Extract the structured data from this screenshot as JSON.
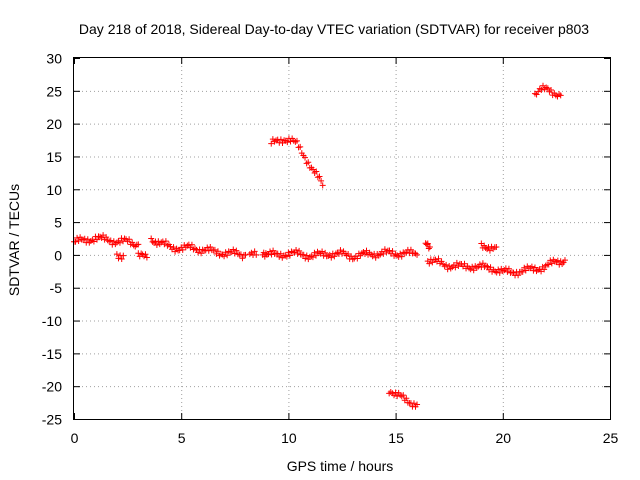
{
  "chart_data": {
    "type": "scatter",
    "title": "Day 218 of 2018, Sidereal Day-to-day VTEC variation (SDTVAR) for receiver p803",
    "xlabel": "GPS time / hours",
    "ylabel": "SDTVAR / TECUs",
    "xlim": [
      0,
      25
    ],
    "ylim": [
      -25,
      30
    ],
    "x_ticks": [
      0,
      5,
      10,
      15,
      20,
      25
    ],
    "y_ticks": [
      -25,
      -20,
      -15,
      -10,
      -5,
      0,
      5,
      10,
      15,
      20,
      25,
      30
    ],
    "grid": true,
    "marker": "plus",
    "color": "#ff0000",
    "series": [
      {
        "name": "SDTVAR",
        "segments": [
          [
            [
              0.0,
              2.0
            ],
            [
              0.5,
              2.2
            ],
            [
              1.0,
              2.6
            ],
            [
              1.5,
              2.3
            ],
            [
              2.0,
              2.1
            ],
            [
              2.5,
              2.0
            ],
            [
              3.0,
              1.6
            ]
          ],
          [
            [
              2.0,
              0.0
            ],
            [
              2.3,
              -0.1
            ]
          ],
          [
            [
              3.0,
              -0.2
            ],
            [
              3.4,
              -0.4
            ]
          ],
          [
            [
              3.6,
              2.5
            ],
            [
              4.0,
              1.8
            ],
            [
              4.5,
              1.2
            ],
            [
              5.0,
              1.0
            ],
            [
              5.5,
              1.1
            ],
            [
              6.0,
              0.8
            ],
            [
              6.5,
              0.5
            ],
            [
              7.0,
              0.3
            ],
            [
              7.5,
              0.2
            ],
            [
              8.0,
              0.0
            ]
          ],
          [
            [
              8.2,
              -0.2
            ],
            [
              8.5,
              0.0
            ]
          ],
          [
            [
              8.8,
              0.5
            ],
            [
              9.0,
              0.2
            ],
            [
              9.5,
              -0.1
            ],
            [
              10.0,
              0.3
            ],
            [
              10.5,
              0.1
            ],
            [
              11.0,
              -0.1
            ],
            [
              11.5,
              0.0
            ],
            [
              12.0,
              0.2
            ],
            [
              12.5,
              0.1
            ],
            [
              13.0,
              -0.2
            ],
            [
              13.5,
              0.0
            ],
            [
              14.0,
              0.2
            ],
            [
              14.5,
              0.3
            ],
            [
              15.0,
              0.2
            ],
            [
              15.5,
              0.3
            ],
            [
              16.0,
              0.0
            ]
          ],
          [
            [
              9.2,
              16.9
            ],
            [
              9.5,
              17.4
            ],
            [
              9.8,
              17.7
            ],
            [
              10.1,
              17.5
            ],
            [
              10.4,
              16.8
            ],
            [
              10.7,
              15.3
            ],
            [
              11.0,
              13.8
            ],
            [
              11.3,
              12.2
            ],
            [
              11.6,
              10.6
            ]
          ],
          [
            [
              14.7,
              -20.5
            ],
            [
              15.0,
              -21.3
            ],
            [
              15.5,
              -22.1
            ],
            [
              16.0,
              -22.8
            ]
          ],
          [
            [
              16.4,
              1.5
            ],
            [
              16.6,
              1.2
            ]
          ],
          [
            [
              16.5,
              -0.8
            ],
            [
              17.0,
              -1.2
            ],
            [
              17.5,
              -1.6
            ],
            [
              18.0,
              -1.8
            ],
            [
              18.5,
              -1.7
            ],
            [
              19.0,
              -1.9
            ],
            [
              19.5,
              -2.0
            ],
            [
              20.0,
              -2.6
            ],
            [
              20.5,
              -2.6
            ],
            [
              21.0,
              -2.4
            ],
            [
              21.5,
              -2.1
            ],
            [
              22.0,
              -1.8
            ],
            [
              22.5,
              -1.0
            ],
            [
              22.9,
              -0.8
            ]
          ],
          [
            [
              19.0,
              1.2
            ],
            [
              19.4,
              1.3
            ],
            [
              19.7,
              1.2
            ]
          ],
          [
            [
              21.5,
              24.5
            ],
            [
              21.8,
              25.1
            ],
            [
              22.1,
              25.2
            ],
            [
              22.4,
              24.8
            ],
            [
              22.7,
              24.3
            ]
          ]
        ]
      }
    ]
  }
}
